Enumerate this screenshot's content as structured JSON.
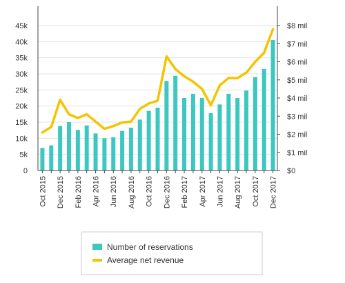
{
  "chart_data": {
    "type": "bar",
    "categories": [
      "Oct 2015",
      "Nov 2015",
      "Dec 2015",
      "Jan 2016",
      "Feb 2016",
      "Mar 2016",
      "Apr 2016",
      "May 2016",
      "Jun 2016",
      "Jul 2016",
      "Aug 2016",
      "Sep 2016",
      "Oct 2016",
      "Nov 2016",
      "Dec 2016",
      "Jan 2017",
      "Feb 2017",
      "Mar 2017",
      "Apr 2017",
      "May 2017",
      "Jun 2017",
      "Jul 2017",
      "Aug 2017",
      "Sep 2017",
      "Oct 2017",
      "Nov 2017",
      "Dec 2017"
    ],
    "x_tick_labels": [
      "Oct 2015",
      "Dec 2015",
      "Feb 2016",
      "Apr 2016",
      "Jun 2016",
      "Aug 2016",
      "Oct 2016",
      "Dec 2016",
      "Feb 2017",
      "Apr 2017",
      "Jun 2017",
      "Aug 2017",
      "Oct 2017",
      "Dec 2017"
    ],
    "series": [
      {
        "name": "Number of reservations",
        "type": "bar",
        "axis": "left",
        "color": "#3cc8c0",
        "values": [
          7000,
          7800,
          13800,
          15000,
          12600,
          14000,
          11500,
          10000,
          10300,
          12300,
          13300,
          15800,
          18500,
          19500,
          27800,
          29400,
          22500,
          23800,
          22500,
          17800,
          20500,
          23800,
          22500,
          24800,
          29000,
          31500,
          40500
        ]
      },
      {
        "name": "Average net revenue",
        "type": "line",
        "axis": "right",
        "color": "#f5c400",
        "values": [
          2.1,
          2.4,
          3.9,
          3.1,
          2.9,
          3.1,
          2.7,
          2.3,
          2.45,
          2.65,
          2.7,
          3.4,
          3.7,
          3.85,
          6.3,
          5.6,
          5.2,
          4.9,
          4.5,
          3.6,
          4.7,
          5.1,
          5.1,
          5.4,
          6.0,
          6.5,
          7.8
        ]
      }
    ],
    "y_left": {
      "ylim": [
        0,
        45000
      ],
      "ticks": [
        0,
        5000,
        10000,
        15000,
        20000,
        25000,
        30000,
        35000,
        40000,
        45000
      ],
      "tick_labels": [
        "0",
        "5k",
        "10k",
        "15k",
        "20k",
        "25k",
        "30k",
        "35k",
        "40k",
        "45k"
      ]
    },
    "y_right": {
      "ylim": [
        0,
        8
      ],
      "ticks": [
        0,
        1,
        2,
        3,
        4,
        5,
        6,
        7,
        8
      ],
      "tick_labels": [
        "$0",
        "$1 mil",
        "$2 mil",
        "$3 mil",
        "$4 mil",
        "$5 mil",
        "$6 mil",
        "$7 mil",
        "$8 mil"
      ]
    },
    "title": "",
    "xlabel": "",
    "ylabel": "",
    "grid": true,
    "legend_position": "bottom"
  }
}
